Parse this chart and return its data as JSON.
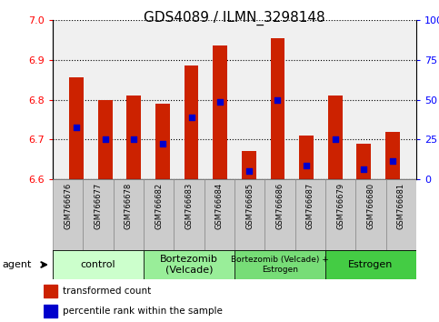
{
  "title": "GDS4089 / ILMN_3298148",
  "samples": [
    "GSM766676",
    "GSM766677",
    "GSM766678",
    "GSM766682",
    "GSM766683",
    "GSM766684",
    "GSM766685",
    "GSM766686",
    "GSM766687",
    "GSM766679",
    "GSM766680",
    "GSM766681"
  ],
  "bar_tops": [
    6.855,
    6.8,
    6.81,
    6.79,
    6.885,
    6.935,
    6.67,
    6.955,
    6.71,
    6.81,
    6.69,
    6.72
  ],
  "bar_bottom": 6.6,
  "blue_dots": [
    6.73,
    6.7,
    6.7,
    6.69,
    6.755,
    6.795,
    6.62,
    6.8,
    6.635,
    6.7,
    6.625,
    6.645
  ],
  "ylim": [
    6.6,
    7.0
  ],
  "yticks_left": [
    6.6,
    6.7,
    6.8,
    6.9,
    7.0
  ],
  "yticks_right_vals": [
    0,
    25,
    50,
    75,
    100
  ],
  "bar_color": "#cc2200",
  "dot_color": "#0000cc",
  "background_plot": "#f0f0f0",
  "groups": [
    {
      "label": "control",
      "start": 0,
      "end": 3,
      "color": "#ccffcc"
    },
    {
      "label": "Bortezomib\n(Velcade)",
      "start": 3,
      "end": 6,
      "color": "#99ee99"
    },
    {
      "label": "Bortezomib (Velcade) +\nEstrogen",
      "start": 6,
      "end": 9,
      "color": "#77dd77"
    },
    {
      "label": "Estrogen",
      "start": 9,
      "end": 12,
      "color": "#44cc44"
    }
  ],
  "agent_label": "agent",
  "legend_bar_label": "transformed count",
  "legend_dot_label": "percentile rank within the sample",
  "bar_width": 0.5,
  "dot_size": 25,
  "title_fontsize": 11,
  "tick_fontsize": 8,
  "sample_fontsize": 6
}
